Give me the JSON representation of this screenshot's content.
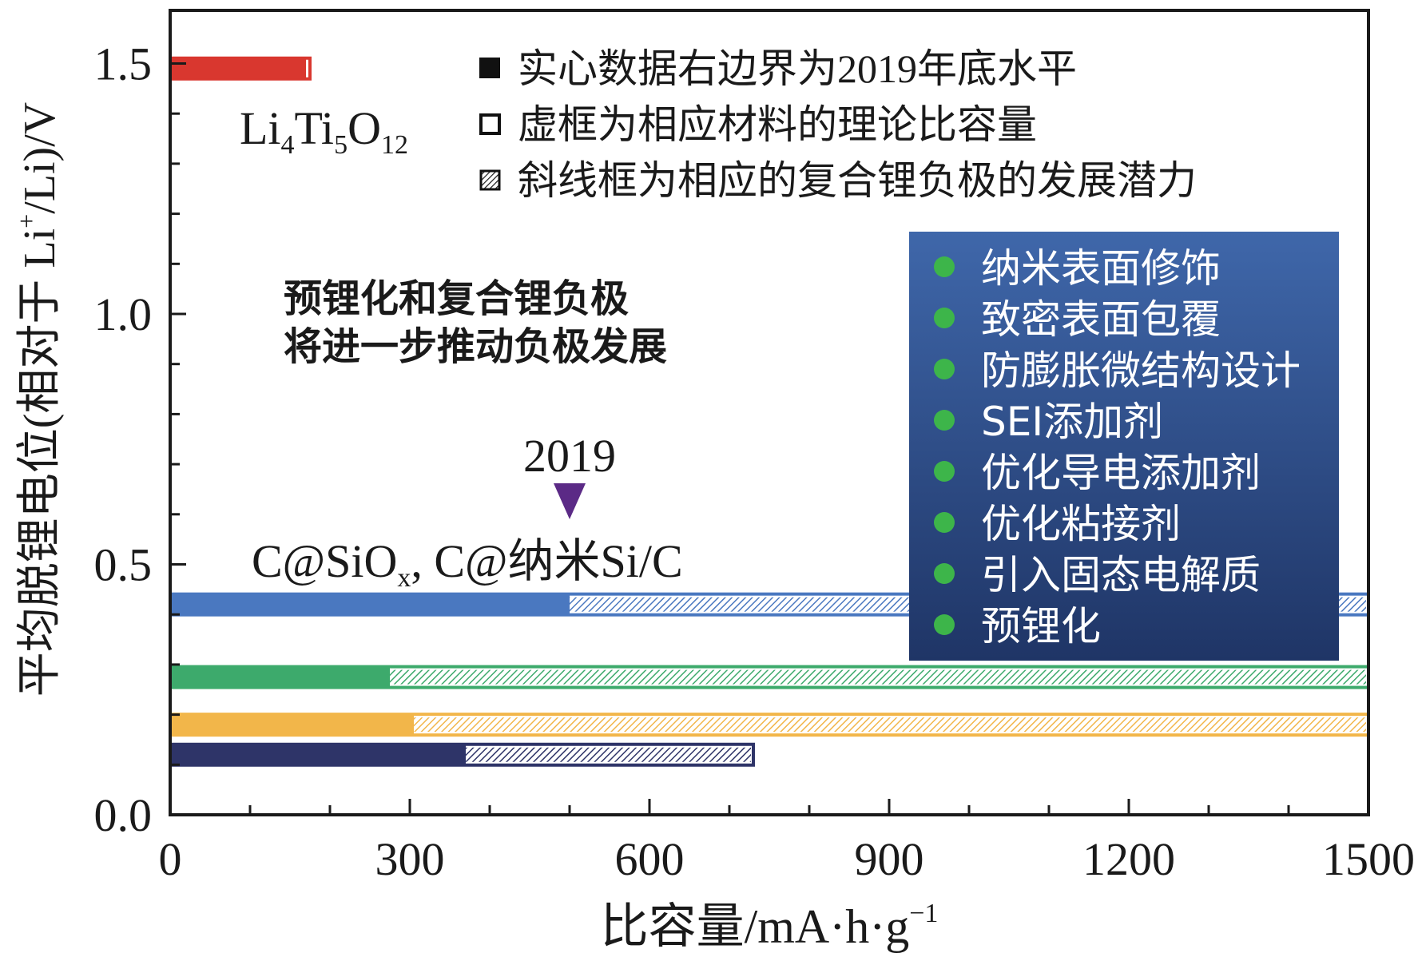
{
  "chart_data": {
    "type": "bar",
    "orientation": "horizontal",
    "xlabel": "比容量/mA·h·g",
    "xlabel_sup": "−1",
    "ylabel": "平均脱锂电位(相对于 Li",
    "ylabel_sup": "+",
    "ylabel_tail": "/Li)/V",
    "xlim": [
      0,
      1500
    ],
    "ylim": [
      0,
      1.6
    ],
    "xticks": [
      "0",
      "300",
      "600",
      "900",
      "1200",
      "1500"
    ],
    "yticks": [
      "0.0",
      "0.5",
      "1.0",
      "1.5"
    ],
    "bars": [
      {
        "y": 1.49,
        "solid_end": 170,
        "solid_start": 0,
        "outline_end": 175,
        "hatch_start": null,
        "hatch_end": null,
        "color": "#d9372f",
        "hatch_color": "#d9372f"
      },
      {
        "y": 0.42,
        "solid_start": 0,
        "solid_end": 500,
        "hatch_start": 500,
        "hatch_end": 1500,
        "outline_end": 1500,
        "color": "#4a78c0",
        "hatch_color": "#4a78c0"
      },
      {
        "y": 0.275,
        "solid_start": 0,
        "solid_end": 275,
        "hatch_start": 275,
        "hatch_end": 1500,
        "outline_end": 1500,
        "color": "#3daa6c",
        "hatch_color": "#3daa6c"
      },
      {
        "y": 0.18,
        "solid_start": 0,
        "solid_end": 305,
        "hatch_start": 305,
        "hatch_end": 1500,
        "outline_end": 1500,
        "color": "#f2b64a",
        "hatch_color": "#f2b64a"
      },
      {
        "y": 0.12,
        "solid_start": 0,
        "solid_end": 370,
        "hatch_start": 370,
        "hatch_end": 730,
        "outline_end": 730,
        "color": "#2e3468",
        "hatch_color": "#2e3468"
      }
    ],
    "annotations": {
      "lto_label": {
        "main": "Li",
        "s1": "4",
        "m2": "Ti",
        "s2": "5",
        "m3": "O",
        "s3": "12"
      },
      "si_label": {
        "p1": "C@SiO",
        "sub": "x",
        "p2": ", C@纳米Si/C"
      },
      "year_marker": {
        "text": "2019",
        "x": 500
      },
      "center_text": [
        "预锂化和复合锂负极",
        "将进一步推动负极发展"
      ]
    },
    "legend": {
      "placement": "top-right",
      "items": [
        {
          "marker": "solid",
          "label": "实心数据右边界为2019年底水平"
        },
        {
          "marker": "open",
          "label": "虚框为相应材料的理论比容量"
        },
        {
          "marker": "hatched",
          "label": "斜线框为相应的复合锂负极的发展潜力"
        }
      ]
    },
    "info_box": {
      "items": [
        "纳米表面修饰",
        "致密表面包覆",
        "防膨胀微结构设计",
        "SEI添加剂",
        "优化导电添加剂",
        "优化粘接剂",
        "引入固态电解质",
        "预锂化"
      ],
      "bg_top": "#3f67aa",
      "bg_bottom": "#1f3566",
      "bullet_color": "#3db54a",
      "text_color": "#ffffff"
    },
    "grid": false
  }
}
